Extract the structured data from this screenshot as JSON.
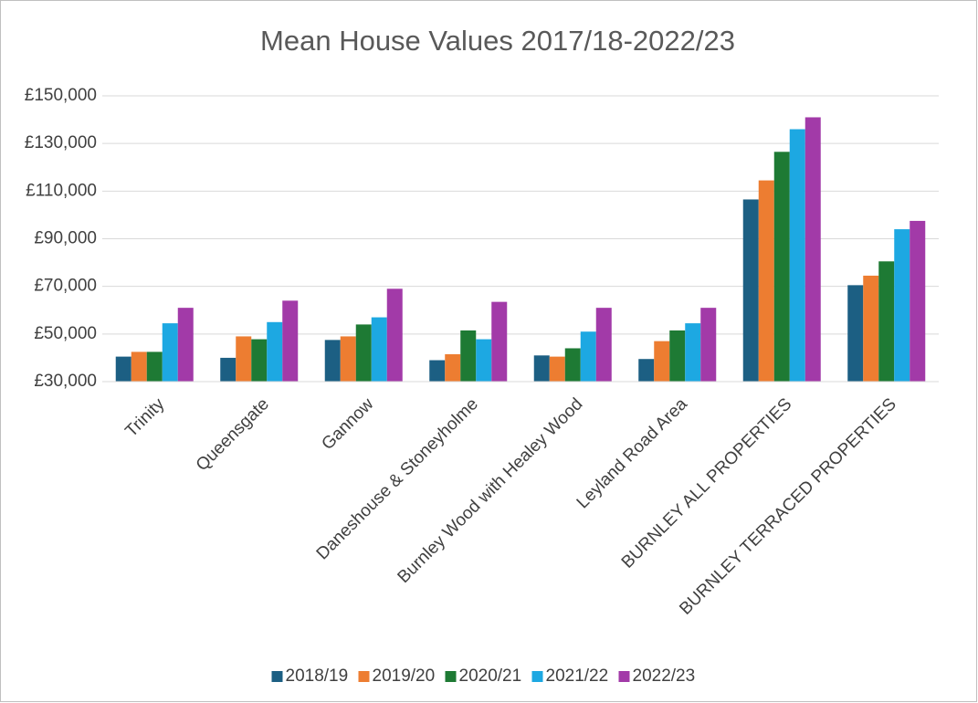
{
  "chart_data": {
    "type": "bar",
    "title": "Mean House Values 2017/18-2022/23",
    "categories": [
      "Trinity",
      "Queensgate",
      "Gannow",
      "Daneshouse & Stoneyholme",
      "Burnley Wood with Healey Wood",
      "Leyland Road Area",
      "BURNLEY ALL PROPERTIES",
      "BURNLEY TERRACED PROPERTIES"
    ],
    "series": [
      {
        "name": "2018/19",
        "color": "#1c5f83",
        "values": [
          40500,
          40000,
          47500,
          39000,
          41000,
          39500,
          106500,
          70500
        ]
      },
      {
        "name": "2019/20",
        "color": "#ed7d31",
        "values": [
          42500,
          49000,
          49000,
          41500,
          40500,
          47000,
          114500,
          74500
        ]
      },
      {
        "name": "2020/21",
        "color": "#1e7a34",
        "values": [
          42500,
          47800,
          54000,
          51500,
          44000,
          51500,
          126500,
          80500
        ]
      },
      {
        "name": "2021/22",
        "color": "#1da8e2",
        "values": [
          54500,
          55000,
          57000,
          47800,
          51000,
          54500,
          136000,
          94000
        ]
      },
      {
        "name": "2022/23",
        "color": "#a23aa8",
        "values": [
          61000,
          64000,
          69000,
          63500,
          61000,
          61000,
          141000,
          97500
        ]
      }
    ],
    "ylim": [
      30000,
      150000
    ],
    "yticks": [
      {
        "value": 30000,
        "label": "£30,000"
      },
      {
        "value": 50000,
        "label": "£50,000"
      },
      {
        "value": 70000,
        "label": "£70,000"
      },
      {
        "value": 90000,
        "label": "£90,000"
      },
      {
        "value": 110000,
        "label": "£110,000"
      },
      {
        "value": 130000,
        "label": "£130,000"
      },
      {
        "value": 150000,
        "label": "£150,000"
      }
    ],
    "grid": true,
    "legend": "bottom"
  }
}
